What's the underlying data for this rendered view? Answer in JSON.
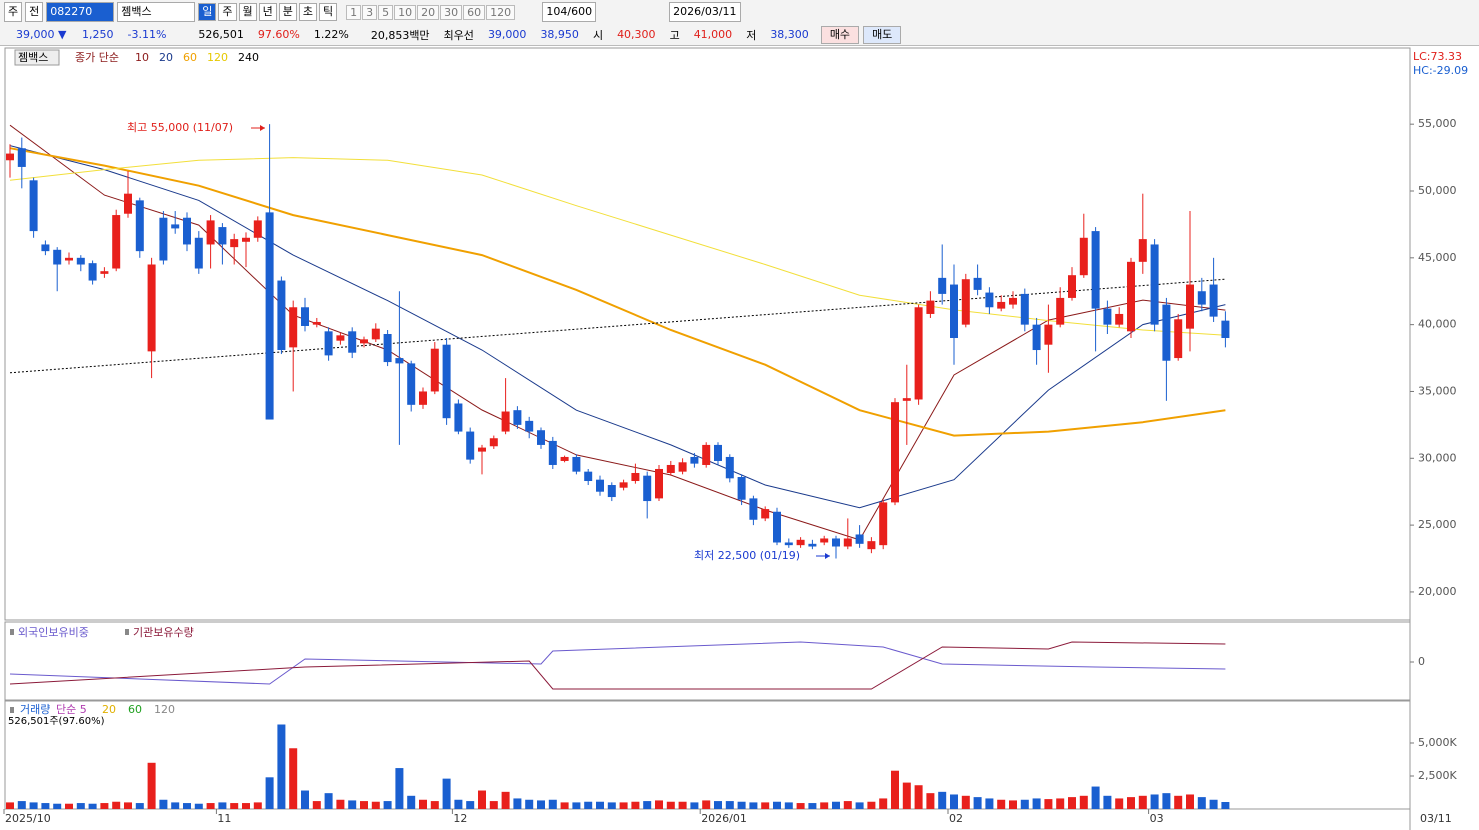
{
  "toolbar": {
    "market": "주",
    "mode": "전",
    "code": "082270",
    "name": "젬백스",
    "periods": [
      "일",
      "주",
      "월",
      "년",
      "분",
      "초",
      "틱"
    ],
    "intervals": [
      "1",
      "3",
      "5",
      "10",
      "20",
      "30",
      "60",
      "120"
    ],
    "count": "104/600",
    "date": "2026/03/11"
  },
  "quote": {
    "price": "39,000 ▼",
    "change": "1,250",
    "rate": "-3.11%",
    "volume": "526,501",
    "vol_ratio": "97.60%",
    "turnover": "1.22%",
    "amount": "20,853백만",
    "best_label": "최우선",
    "ask": "39,000",
    "bid": "38,950",
    "open_label": "시",
    "open": "40,300",
    "high_label": "고",
    "high": "41,000",
    "low_label": "저",
    "low": "38,300",
    "buy": "매수",
    "sell": "매도"
  },
  "chart_data": {
    "type": "candlestick",
    "name": "젬백스",
    "ma_label": "종가 단순",
    "lc": "LC:73.33",
    "hc": "HC:-29.09",
    "colors": {
      "up": "#e8201c",
      "down": "#1a5fd0"
    },
    "open": [
      52300,
      53200,
      50800,
      46000,
      45600,
      44800,
      45000,
      44600,
      43800,
      44200,
      48300,
      49300,
      38000,
      48000,
      47500,
      48000,
      46500,
      46000,
      47300,
      45800,
      46200,
      46500,
      48400,
      43300,
      38300,
      41300,
      40000,
      39500,
      38800,
      39500,
      38600,
      38900,
      39300,
      37500,
      37100,
      34000,
      35000,
      38500,
      34100,
      32000,
      30500,
      30900,
      32000,
      33600,
      32800,
      32100,
      31300,
      29800,
      30100,
      29000,
      28400,
      28000,
      27800,
      28300,
      28700,
      27000,
      28900,
      29000,
      30100,
      29500,
      31000,
      30100,
      28600,
      27000,
      25500,
      26000,
      23700,
      23500,
      23600,
      23700,
      24000,
      23400,
      24300,
      23200,
      23500,
      26700,
      34300,
      34400,
      40800,
      43500,
      43000,
      40000,
      43500,
      42400,
      41200,
      41500,
      42300,
      40000,
      38500,
      40000,
      42000,
      43700,
      47000,
      41200,
      40000,
      39500,
      44700,
      46000,
      41500,
      37500,
      39700,
      42500,
      43000,
      40300
    ],
    "high": [
      53500,
      54000,
      51000,
      46300,
      45800,
      45400,
      45200,
      44800,
      44300,
      48600,
      51500,
      49500,
      45000,
      48500,
      48500,
      48400,
      47000,
      48200,
      47600,
      46800,
      46900,
      48100,
      55000,
      43600,
      41800,
      42000,
      40500,
      39800,
      39400,
      39800,
      39100,
      40100,
      39600,
      42500,
      37300,
      35300,
      38700,
      39000,
      34400,
      32300,
      31000,
      31700,
      36000,
      33900,
      33100,
      32300,
      31600,
      30200,
      30300,
      29200,
      28700,
      28200,
      28400,
      29600,
      29000,
      29500,
      29800,
      30000,
      30400,
      31200,
      31200,
      30300,
      28800,
      27200,
      26400,
      26300,
      24000,
      24100,
      23900,
      24200,
      24200,
      25500,
      25000,
      24100,
      26900,
      34500,
      37000,
      41500,
      42500,
      46000,
      44500,
      43800,
      44500,
      42800,
      42200,
      42500,
      42700,
      40500,
      41500,
      42800,
      44300,
      48300,
      47300,
      41800,
      41300,
      45000,
      49800,
      46400,
      42000,
      40800,
      48500,
      43500,
      45000,
      41000
    ],
    "low": [
      51000,
      50200,
      46500,
      45200,
      42500,
      44500,
      44000,
      43000,
      43500,
      44000,
      48000,
      45000,
      36000,
      44500,
      46800,
      45500,
      43800,
      44200,
      44500,
      44500,
      44300,
      46200,
      32900,
      37800,
      35000,
      39500,
      39800,
      37300,
      38500,
      37500,
      38300,
      38700,
      36900,
      31000,
      33500,
      33700,
      34800,
      32500,
      31800,
      29600,
      28800,
      30700,
      31800,
      32200,
      31500,
      30700,
      29200,
      29700,
      28800,
      28000,
      27200,
      26800,
      27600,
      28100,
      25500,
      26800,
      28700,
      28800,
      29300,
      29300,
      29500,
      28200,
      26500,
      25000,
      25300,
      23500,
      23300,
      23300,
      23200,
      23500,
      22500,
      23200,
      23300,
      22900,
      23200,
      26500,
      31000,
      34000,
      40500,
      41500,
      37000,
      39800,
      42200,
      40800,
      41000,
      41200,
      39500,
      37000,
      36400,
      39800,
      41800,
      43500,
      38000,
      39300,
      39800,
      39000,
      43800,
      39500,
      34300,
      37300,
      38000,
      41000,
      40200,
      38300
    ],
    "close": [
      52800,
      51800,
      47000,
      45500,
      44500,
      45000,
      44500,
      43300,
      44000,
      48200,
      49800,
      45500,
      44500,
      44800,
      47200,
      46000,
      44200,
      47800,
      46000,
      46400,
      46500,
      47800,
      32900,
      38100,
      41300,
      39900,
      40200,
      37700,
      39200,
      37900,
      38900,
      39700,
      37200,
      37100,
      34000,
      35000,
      38200,
      33000,
      32000,
      29900,
      30800,
      31500,
      33500,
      32500,
      32000,
      31000,
      29500,
      30100,
      29000,
      28300,
      27500,
      27100,
      28200,
      28900,
      26800,
      29200,
      29500,
      29700,
      29600,
      31000,
      29800,
      28500,
      26900,
      25400,
      26200,
      23700,
      23500,
      23900,
      23400,
      24000,
      23400,
      24000,
      23600,
      23800,
      26700,
      34200,
      34500,
      41300,
      41800,
      42300,
      39000,
      43400,
      42600,
      41300,
      41700,
      42000,
      40000,
      38100,
      40000,
      42000,
      43700,
      46500,
      41200,
      40000,
      40800,
      44700,
      46400,
      40000,
      37300,
      40400,
      43000,
      41500,
      40600,
      39000
    ],
    "ma": [
      {
        "name": "10",
        "color": "#8b1a1a",
        "x": [
          0,
          8,
          16,
          24,
          32,
          40,
          48,
          56,
          64,
          72,
          80,
          88,
          96,
          103
        ],
        "values": [
          54925,
          49690,
          47450,
          40715,
          38100,
          33610,
          30250,
          28750,
          26130,
          23890,
          36230,
          40340,
          41840,
          41090
        ]
      },
      {
        "name": "20",
        "color": "#1a3a8c",
        "x": [
          0,
          8,
          16,
          24,
          32,
          40,
          48,
          56,
          64,
          72,
          80,
          88,
          96,
          103
        ],
        "values": [
          53400,
          51600,
          49300,
          45200,
          41800,
          38100,
          33600,
          31000,
          28000,
          26300,
          28400,
          35100,
          40000,
          41500
        ]
      },
      {
        "name": "60",
        "color": "#f0a000",
        "x": [
          0,
          8,
          16,
          24,
          32,
          40,
          48,
          56,
          64,
          72,
          80,
          88,
          96,
          103
        ],
        "values": [
          53200,
          51900,
          50400,
          48200,
          46700,
          45200,
          42600,
          39600,
          37000,
          33600,
          31700,
          32000,
          32700,
          33600
        ]
      },
      {
        "name": "120",
        "color": "#f2df3a",
        "x": [
          0,
          8,
          16,
          24,
          32,
          40,
          48,
          56,
          64,
          72,
          80,
          88,
          96,
          103
        ],
        "values": [
          50800,
          51600,
          52300,
          52500,
          52300,
          51200,
          48900,
          46700,
          44500,
          42200,
          41100,
          40300,
          39600,
          39200
        ]
      },
      {
        "name": "240",
        "color": "#000000",
        "style": "dotted",
        "x": [
          0,
          103
        ],
        "values": [
          36400,
          43400
        ]
      }
    ],
    "ylim": [
      17900,
      60700
    ],
    "yticks": [
      {
        "value": 20000,
        "label": "20,000"
      },
      {
        "value": 25000,
        "label": "25,000"
      },
      {
        "value": 30000,
        "label": "30,000"
      },
      {
        "value": 35000,
        "label": "35,000"
      },
      {
        "value": 40000,
        "label": "40,000"
      },
      {
        "value": 45000,
        "label": "45,000"
      },
      {
        "value": 50000,
        "label": "50,000"
      },
      {
        "value": 55000,
        "label": "55,000"
      }
    ],
    "xticks": [
      {
        "value": 0,
        "label": "2025/10"
      },
      {
        "value": 18,
        "label": "11"
      },
      {
        "value": 38,
        "label": "12"
      },
      {
        "value": 59,
        "label": "2026/01"
      },
      {
        "value": 80,
        "label": "02"
      },
      {
        "value": 97,
        "label": "03"
      }
    ],
    "last_date": "03/11",
    "annotations": [
      {
        "text": "최고 55,000 (11/07)",
        "color": "#e0201b"
      },
      {
        "text": "최저 22,500 (01/19)",
        "color": "#1a3ad0"
      }
    ],
    "ownership": {
      "ylim": [
        -38,
        37
      ],
      "yticks": [
        0
      ],
      "series": [
        {
          "name": "외국인보유비중",
          "color": "#6a5acd",
          "x": [
            0,
            22,
            25,
            45,
            46,
            67,
            74,
            79,
            92,
            103
          ],
          "values": [
            -12,
            -22,
            3,
            -2,
            11,
            20,
            15,
            -2,
            -5,
            -7
          ]
        },
        {
          "name": "기관보유수량",
          "color": "#8b1a3a",
          "x": [
            0,
            25,
            44,
            46,
            73,
            79,
            88,
            90,
            103
          ],
          "values": [
            -22,
            -5,
            1,
            -27,
            -27,
            15,
            13,
            20,
            18
          ]
        }
      ]
    },
    "volume": {
      "ylim": [
        0,
        8180
      ],
      "yticks": [
        {
          "value": 2500,
          "label": "2,500K"
        },
        {
          "value": 5000,
          "label": "5,000K"
        }
      ],
      "note": "526,501주(97.60%)",
      "legend": [
        {
          "label": "거래량",
          "color": "#1a5fd0"
        },
        {
          "label": "단순 5",
          "color": "#b03cb0"
        },
        {
          "label": "20",
          "color": "#e0b000"
        },
        {
          "label": "60",
          "color": "#20a020"
        },
        {
          "label": "120",
          "color": "#888888"
        }
      ],
      "values": [
        500,
        600,
        500,
        450,
        400,
        400,
        450,
        400,
        450,
        550,
        500,
        450,
        3500,
        700,
        500,
        450,
        400,
        450,
        500,
        450,
        450,
        500,
        2400,
        6400,
        4600,
        1400,
        600,
        1200,
        700,
        650,
        600,
        550,
        600,
        3100,
        1000,
        700,
        600,
        2300,
        700,
        600,
        1400,
        600,
        1300,
        800,
        700,
        650,
        700,
        500,
        500,
        550,
        550,
        500,
        500,
        550,
        600,
        650,
        550,
        550,
        500,
        650,
        600,
        600,
        550,
        500,
        500,
        550,
        500,
        450,
        450,
        500,
        550,
        600,
        500,
        550,
        800,
        2900,
        2000,
        1800,
        1200,
        1300,
        1100,
        1000,
        900,
        800,
        700,
        650,
        700,
        800,
        750,
        800,
        900,
        1000,
        1700,
        1000,
        800,
        900,
        1000,
        1100,
        1200,
        1000,
        1100,
        900,
        700,
        530
      ]
    }
  }
}
